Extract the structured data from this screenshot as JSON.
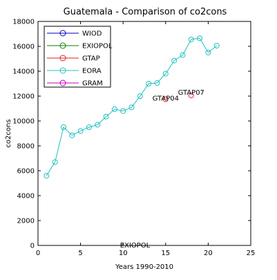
{
  "chart_data": {
    "type": "line",
    "title": "Guatemala - Comparison of co2cons",
    "xlabel": "Years 1990-2010",
    "ylabel": "co2cons",
    "xlim": [
      0,
      25
    ],
    "ylim": [
      0,
      18000
    ],
    "x_ticks": [
      0,
      5,
      10,
      15,
      20,
      25
    ],
    "y_ticks": [
      0,
      2000,
      4000,
      6000,
      8000,
      10000,
      12000,
      14000,
      16000,
      18000
    ],
    "grid": false,
    "legend_position": "top-left",
    "series": [
      {
        "name": "WIOD",
        "color": "#0000bf",
        "x": [],
        "y": []
      },
      {
        "name": "EXIOPOL",
        "color": "#008000",
        "x": [],
        "y": []
      },
      {
        "name": "GTAP",
        "color": "#e02020",
        "x": [
          15,
          18
        ],
        "y": [
          11750,
          12050
        ]
      },
      {
        "name": "EORA",
        "color": "#20c0c0",
        "x": [
          1,
          2,
          3,
          4,
          5,
          6,
          7,
          8,
          9,
          10,
          11,
          12,
          13,
          14,
          15,
          16,
          17,
          18,
          19,
          20,
          21
        ],
        "y": [
          5600,
          6700,
          9500,
          8850,
          9200,
          9500,
          9700,
          10350,
          10950,
          10800,
          11100,
          12000,
          13000,
          13050,
          13800,
          14850,
          15300,
          16550,
          16650,
          15500,
          16050
        ]
      },
      {
        "name": "GRAM",
        "color": "#bf00bf",
        "x": [],
        "y": []
      }
    ],
    "annotations": [
      {
        "text": "GTAP04",
        "x": 15,
        "y": 11750,
        "color": "#000000"
      },
      {
        "text": "GTAP07",
        "x": 18,
        "y": 12050,
        "color": "#000000"
      },
      {
        "text": "EXIOPOL",
        "x": 11,
        "y": 0,
        "color": "#000000"
      }
    ]
  }
}
